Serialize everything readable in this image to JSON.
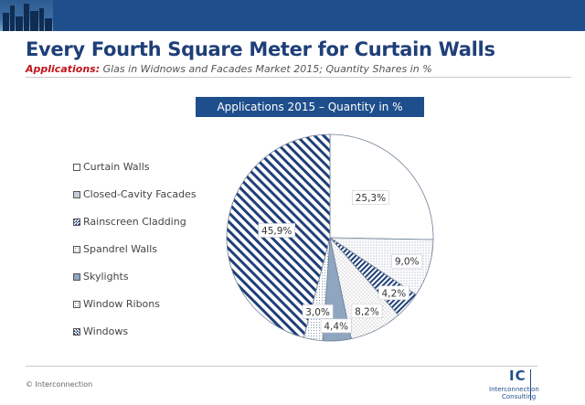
{
  "header": {
    "title": "Every Fourth Square Meter for Curtain Walls",
    "subtitle_label": "Applications:",
    "subtitle_text": " Glas in Widnows and Facades Market 2015; Quantity Shares in %"
  },
  "chart_data": {
    "type": "pie",
    "title": "Applications 2015 – Quantity in %",
    "categories": [
      "Curtain Walls",
      "Closed-Cavity Facades",
      "Rainscreen Cladding",
      "Spandrel Walls",
      "Skylights",
      "Window Ribons",
      "Windows"
    ],
    "values": [
      25.3,
      9.0,
      4.2,
      8.2,
      4.4,
      3.0,
      45.9
    ],
    "labels": [
      "25,3%",
      "9,0%",
      "4,2%",
      "8,2%",
      "4,4%",
      "3,0%",
      "45,9%"
    ],
    "unit": "%",
    "legend_position": "left"
  },
  "colors": {
    "brand_blue": "#1f4e8c",
    "title_blue": "#1f3f78",
    "accent_red": "#c0141b"
  },
  "footer": {
    "copyright": "© Interconnection",
    "logo_mark": "IC",
    "logo_line1": "Interconnection",
    "logo_line2": "Consulting"
  }
}
